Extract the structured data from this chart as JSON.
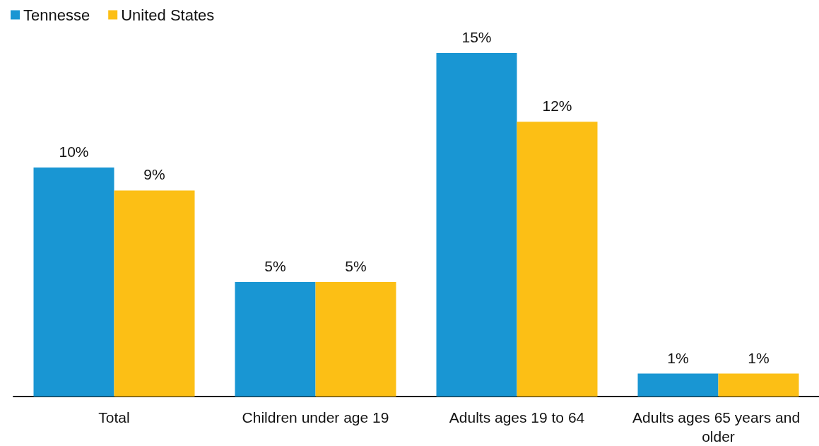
{
  "chart_data": {
    "type": "bar",
    "categories": [
      "Total",
      "Children under age 19",
      "Adults ages 19 to 64",
      "Adults ages 65 years and older"
    ],
    "series": [
      {
        "name": "Tennesse",
        "color": "#1996d3",
        "values": [
          10,
          5,
          15,
          1
        ],
        "value_labels": [
          "10%",
          "5%",
          "15%",
          "1%"
        ]
      },
      {
        "name": "United States",
        "color": "#fcbf15",
        "values": [
          9,
          5,
          12,
          1
        ],
        "value_labels": [
          "9%",
          "5%",
          "12%",
          "1%"
        ]
      }
    ],
    "legend": "top left",
    "grid": false,
    "tick_labels": "x"
  }
}
